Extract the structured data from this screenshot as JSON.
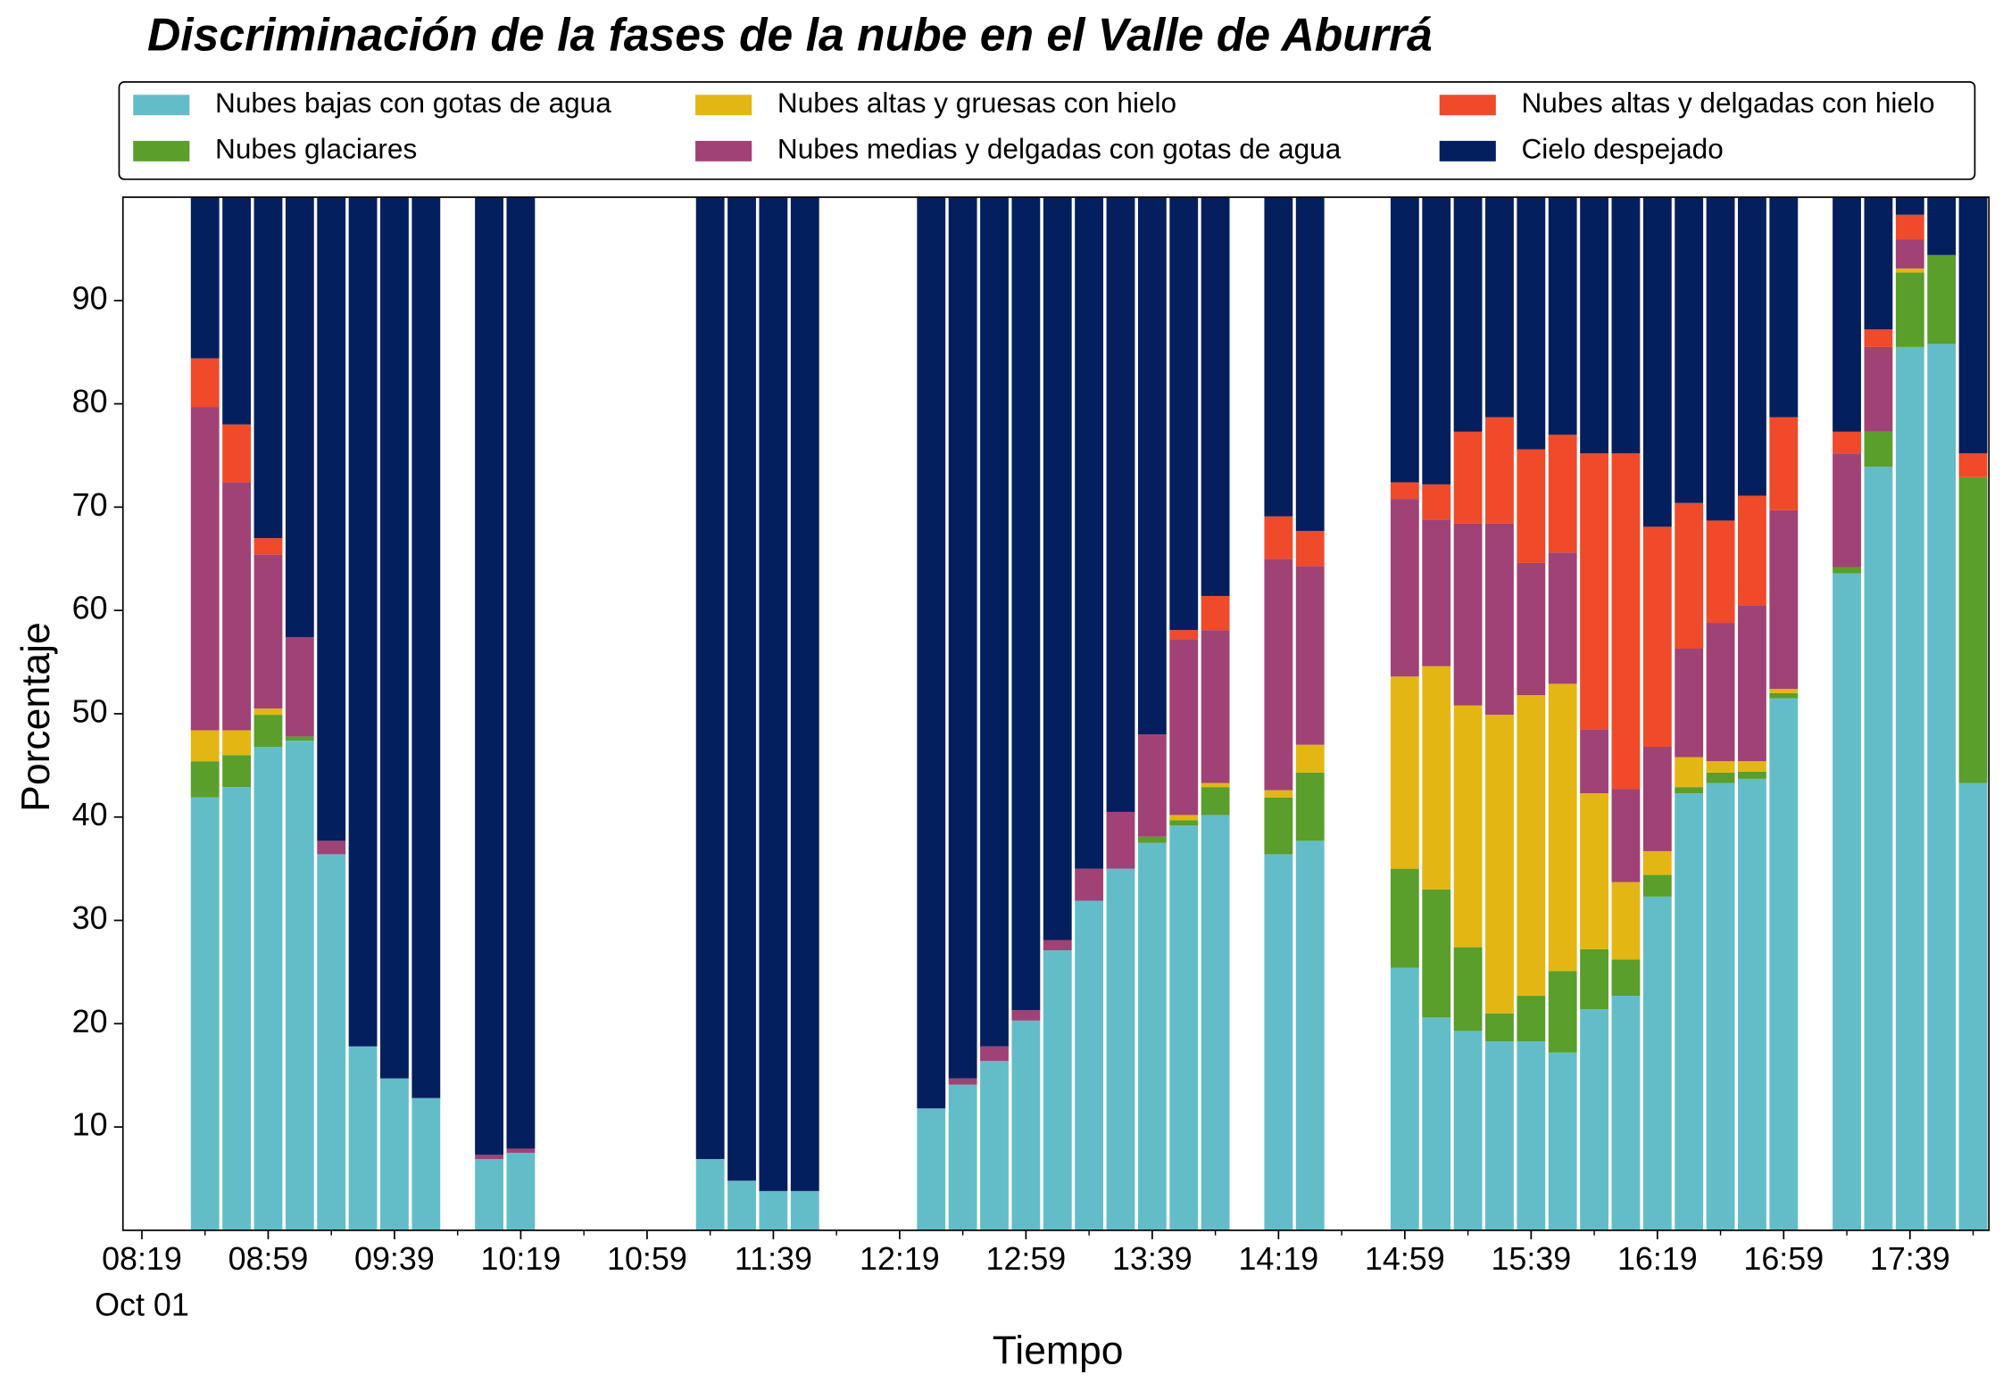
{
  "chart_data": {
    "type": "stacked_bar",
    "title": "Discriminación de la fases de la nube en el Valle de Aburrá",
    "x_label": "Tiempo",
    "y_label": "Porcentaje",
    "x_date_label": "Oct 01",
    "x": [
      "08:39",
      "08:49",
      "08:59",
      "09:09",
      "09:19",
      "09:29",
      "09:39",
      "09:49",
      "10:09",
      "10:19",
      "11:19",
      "11:29",
      "11:39",
      "11:49",
      "12:29",
      "12:39",
      "12:49",
      "12:59",
      "13:09",
      "13:19",
      "13:29",
      "13:39",
      "13:49",
      "13:59",
      "14:19",
      "14:29",
      "14:59",
      "15:09",
      "15:19",
      "15:29",
      "15:39",
      "15:49",
      "15:59",
      "16:09",
      "16:19",
      "16:29",
      "16:39",
      "16:49",
      "16:59",
      "17:19",
      "17:29",
      "17:39",
      "17:49",
      "17:59"
    ],
    "series": [
      {
        "name": "Nubes bajas con gotas de agua",
        "color": "#63bdc9",
        "values": [
          41.9,
          42.9,
          46.8,
          47.4,
          36.4,
          17.8,
          14.7,
          12.8,
          6.9,
          7.5,
          6.9,
          4.8,
          3.8,
          3.8,
          11.8,
          14.1,
          16.4,
          20.3,
          27.1,
          31.9,
          35.0,
          37.5,
          39.2,
          40.2,
          36.4,
          37.7,
          25.4,
          20.6,
          19.3,
          18.3,
          18.3,
          17.2,
          21.4,
          22.7,
          32.3,
          42.3,
          43.3,
          43.7,
          51.5,
          63.6,
          73.9,
          85.5,
          85.8,
          43.3
        ]
      },
      {
        "name": "Nubes glaciares",
        "color": "#5a9e2b",
        "values": [
          3.5,
          3.1,
          3.1,
          0.4,
          0,
          0,
          0,
          0,
          0,
          0,
          0,
          0,
          0,
          0,
          0,
          0,
          0,
          0,
          0,
          0,
          0,
          0.6,
          0.5,
          2.7,
          5.5,
          6.6,
          9.6,
          12.4,
          8.1,
          2.7,
          4.4,
          7.9,
          5.8,
          3.5,
          2.1,
          0.6,
          1.0,
          0.7,
          0.5,
          0.6,
          3.4,
          7.2,
          8.6,
          29.6
        ]
      },
      {
        "name": "Nubes altas y gruesas con hielo",
        "color": "#e3b614",
        "values": [
          3.0,
          2.4,
          0.6,
          0,
          0,
          0,
          0,
          0,
          0,
          0,
          0,
          0,
          0,
          0,
          0,
          0,
          0,
          0,
          0,
          0,
          0,
          0,
          0.5,
          0.4,
          0.7,
          2.7,
          18.6,
          21.6,
          23.4,
          28.9,
          29.1,
          27.8,
          15.1,
          7.5,
          2.3,
          2.9,
          1.1,
          1.0,
          0.4,
          0,
          0,
          0.4,
          0,
          0
        ]
      },
      {
        "name": "Nubes medias y delgadas con gotas de agua",
        "color": "#a04275",
        "values": [
          31.3,
          24.0,
          14.9,
          9.6,
          1.3,
          0,
          0,
          0,
          0.4,
          0.4,
          0,
          0,
          0,
          0,
          0,
          0.6,
          1.4,
          1.0,
          1.0,
          3.1,
          5.5,
          9.9,
          17.0,
          14.8,
          22.4,
          17.3,
          17.2,
          14.2,
          17.6,
          18.5,
          12.8,
          12.7,
          6.2,
          9.0,
          10.1,
          10.5,
          13.4,
          15.1,
          17.3,
          11.0,
          8.2,
          2.8,
          0,
          0
        ]
      },
      {
        "name": "Nubes altas y delgadas con hielo",
        "color": "#ef4a2a",
        "values": [
          4.7,
          5.6,
          1.6,
          0,
          0,
          0,
          0,
          0,
          0,
          0,
          0,
          0,
          0,
          0,
          0,
          0,
          0,
          0,
          0,
          0,
          0,
          0,
          0.9,
          3.3,
          4.1,
          3.4,
          1.6,
          3.4,
          8.9,
          10.3,
          11.0,
          11.4,
          26.7,
          32.5,
          21.3,
          14.1,
          9.9,
          10.6,
          9.0,
          2.1,
          1.7,
          2.4,
          0,
          2.3
        ]
      },
      {
        "name": "Cielo despejado",
        "color": "#041f5e",
        "values": [
          15.6,
          22.0,
          33.0,
          42.6,
          62.3,
          82.2,
          85.3,
          87.2,
          92.7,
          92.1,
          93.1,
          95.2,
          96.2,
          96.2,
          88.2,
          85.3,
          82.2,
          78.7,
          71.9,
          65.0,
          59.5,
          52.0,
          41.9,
          38.6,
          30.9,
          32.3,
          27.6,
          27.8,
          22.7,
          21.3,
          24.4,
          23.0,
          24.8,
          24.8,
          31.9,
          29.6,
          31.3,
          28.9,
          21.3,
          22.7,
          12.8,
          1.7,
          5.6,
          24.8
        ]
      }
    ],
    "xlim": [
      "08:13",
      "18:04"
    ],
    "xticks": [
      "08:19",
      "08:59",
      "09:39",
      "10:19",
      "10:59",
      "11:39",
      "12:19",
      "12:59",
      "13:39",
      "14:19",
      "14:59",
      "15:39",
      "16:19",
      "16:59",
      "17:39"
    ],
    "xminorticks": [
      "08:39",
      "09:19",
      "09:59",
      "10:39",
      "11:19",
      "11:59",
      "12:39",
      "13:19",
      "13:59",
      "14:39",
      "15:19",
      "15:59",
      "16:39",
      "17:19",
      "17:59"
    ],
    "ylim": [
      0,
      100
    ],
    "yticks": [
      10,
      20,
      30,
      40,
      50,
      60,
      70,
      80,
      90
    ],
    "legend": "top",
    "legend_columns": 3
  }
}
